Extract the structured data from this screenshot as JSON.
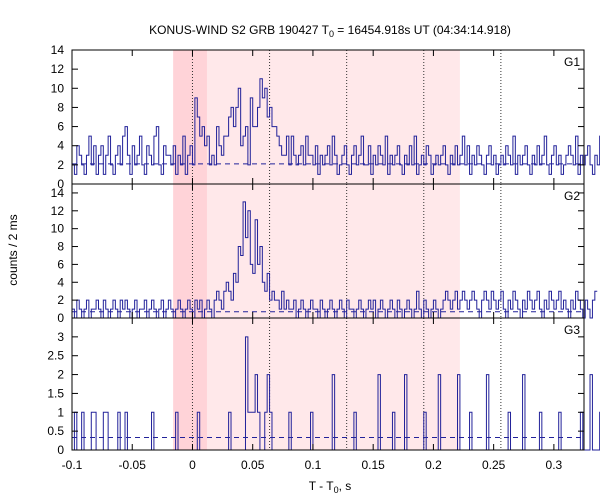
{
  "chart_data": {
    "type": "line",
    "title": {
      "prefix": "KONUS-WIND S2 GRB 190427 T",
      "sub": "0",
      "suffix": " = 16454.918s UT (04:34:14.918)"
    },
    "xlabel": {
      "prefix": "T - T",
      "sub": "0",
      "suffix": ", s"
    },
    "ylabel": "counts / 2 ms",
    "xlim": [
      -0.1,
      0.325
    ],
    "x_ticks": [
      "-0.1",
      "-0.05",
      "0",
      "0.05",
      "0.1",
      "0.15",
      "0.2",
      "0.25",
      "0.3"
    ],
    "x_tick_values": [
      -0.1,
      -0.05,
      0,
      0.05,
      0.1,
      0.15,
      0.2,
      0.25,
      0.3
    ],
    "bin_width": 0.002,
    "colors": {
      "light_region": "#ffe8ea",
      "dark_region": "#ffd3d8",
      "series": "#22229a",
      "dotted_lines": "#333333"
    },
    "shaded_regions": [
      {
        "x": [
          -0.016,
          0.222
        ],
        "shade": "light"
      },
      {
        "x": [
          -0.016,
          0.012
        ],
        "shade": "dark"
      }
    ],
    "dotted_vlines": [
      0,
      0.064,
      0.128,
      0.192,
      0.256
    ],
    "panels": [
      {
        "name": "G1",
        "ylim": [
          0,
          14
        ],
        "yticks": [
          "0",
          "2",
          "4",
          "6",
          "8",
          "10",
          "12",
          "14"
        ],
        "ytick_values": [
          0,
          2,
          4,
          6,
          8,
          10,
          12,
          14
        ],
        "background": 2.1,
        "values": [
          2,
          1,
          4,
          3,
          2,
          1,
          3,
          5,
          2,
          4,
          1,
          3,
          4,
          1,
          3,
          5,
          2,
          1,
          3,
          4,
          2,
          5,
          6,
          3,
          1,
          4,
          2,
          3,
          5,
          2,
          1,
          4,
          3,
          2,
          5,
          6,
          2,
          1,
          4,
          3,
          3,
          2,
          4,
          1,
          3,
          2,
          5,
          1,
          3,
          4,
          2,
          9,
          7,
          5,
          6,
          4,
          5,
          2,
          3,
          2,
          6,
          4,
          3,
          5,
          5,
          7,
          8,
          6,
          8,
          10,
          4,
          5,
          6,
          2,
          9,
          6,
          6,
          8,
          11,
          9,
          10,
          7,
          8,
          6,
          6,
          5,
          4,
          3,
          3,
          5,
          2,
          5,
          3,
          2,
          3,
          4,
          2,
          5,
          3,
          3,
          2,
          4,
          1,
          3,
          2,
          3,
          4,
          2,
          5,
          3,
          1,
          2,
          3,
          4,
          2,
          1,
          3,
          4,
          2,
          3,
          5,
          2,
          2,
          4,
          1,
          3,
          2,
          4,
          3,
          2,
          5,
          1,
          3,
          2,
          3,
          4,
          2,
          1,
          3,
          2,
          4,
          2,
          5,
          1,
          2,
          3,
          2,
          4,
          3,
          1,
          2,
          3,
          2,
          3,
          4,
          2,
          1,
          3,
          2,
          4,
          2,
          3,
          5,
          2,
          4,
          1,
          3,
          2,
          4,
          3,
          2,
          1,
          3,
          4,
          2,
          3,
          1,
          2,
          3,
          2,
          4,
          3,
          2,
          5,
          1,
          3,
          2,
          3,
          4,
          2,
          1,
          3,
          2,
          4,
          2,
          3,
          5,
          2,
          1,
          3,
          4,
          2,
          3,
          1,
          2,
          3,
          4,
          3,
          2,
          5,
          1,
          3,
          2,
          3,
          4,
          2,
          1,
          3,
          2,
          5
        ]
      },
      {
        "name": "G2",
        "ylim": [
          0,
          15
        ],
        "yticks": [
          "0",
          "2",
          "4",
          "6",
          "8",
          "10",
          "12",
          "14"
        ],
        "ytick_values": [
          0,
          2,
          4,
          6,
          8,
          10,
          12,
          14
        ],
        "background": 0.7,
        "values": [
          1,
          0,
          2,
          1,
          0,
          1,
          2,
          0,
          1,
          1,
          2,
          1,
          0,
          2,
          1,
          0,
          1,
          2,
          1,
          0,
          2,
          1,
          2,
          1,
          0,
          1,
          2,
          0,
          1,
          1,
          2,
          0,
          1,
          2,
          1,
          0,
          1,
          2,
          0,
          1,
          2,
          1,
          0,
          1,
          2,
          1,
          0,
          1,
          2,
          1,
          0,
          2,
          1,
          2,
          0,
          1,
          2,
          1,
          0,
          2,
          3,
          2,
          1,
          3,
          4,
          3,
          2,
          5,
          4,
          8,
          7,
          13,
          9,
          12,
          6,
          5,
          11,
          6,
          8,
          4,
          3,
          5,
          2,
          3,
          2,
          2,
          1,
          3,
          1,
          2,
          1,
          1,
          2,
          0,
          1,
          2,
          1,
          0,
          1,
          2,
          1,
          1,
          0,
          2,
          1,
          0,
          1,
          2,
          1,
          0,
          1,
          2,
          1,
          0,
          2,
          1,
          1,
          0,
          1,
          2,
          1,
          0,
          1,
          2,
          1,
          2,
          0,
          1,
          2,
          1,
          0,
          1,
          2,
          1,
          0,
          2,
          1,
          0,
          1,
          2,
          1,
          0,
          1,
          3,
          1,
          0,
          2,
          1,
          0,
          1,
          2,
          1,
          0,
          1,
          2,
          3,
          2,
          1,
          2,
          3,
          1,
          2,
          3,
          2,
          1,
          2,
          3,
          2,
          1,
          0,
          2,
          3,
          2,
          1,
          3,
          2,
          1,
          2,
          3,
          1,
          0,
          2,
          1,
          3,
          2,
          1,
          0,
          2,
          1,
          3,
          2,
          1,
          2,
          3,
          1,
          0,
          2,
          1,
          3,
          2,
          1,
          2,
          3,
          1,
          2,
          1,
          0,
          2,
          1,
          3,
          2,
          1,
          0,
          2,
          1,
          0,
          2,
          3
        ]
      },
      {
        "name": "G3",
        "ylim": [
          0,
          3.5
        ],
        "yticks": [
          "0",
          "0.5",
          "1",
          "1.5",
          "2",
          "2.5",
          "3"
        ],
        "ytick_values": [
          0,
          0.5,
          1,
          1.5,
          2,
          2.5,
          3
        ],
        "background": 0.33,
        "values": [
          0,
          1,
          0,
          0,
          1,
          0,
          0,
          0,
          1,
          1,
          0,
          0,
          0,
          1,
          1,
          0,
          0,
          0,
          0,
          1,
          0,
          0,
          1,
          0,
          0,
          0,
          0,
          0,
          0,
          0,
          0,
          0,
          0,
          1,
          0,
          0,
          0,
          0,
          0,
          0,
          0,
          0,
          0,
          1,
          0,
          0,
          0,
          0,
          0,
          0,
          0,
          0,
          1,
          0,
          0,
          0,
          0,
          0,
          0,
          0,
          0,
          0,
          0,
          0,
          0,
          1,
          0,
          0,
          0,
          0,
          0,
          0,
          3,
          1,
          1,
          1,
          2,
          1,
          0,
          0,
          1,
          2,
          1,
          0,
          0,
          0,
          0,
          0,
          0,
          0,
          1,
          0,
          0,
          0,
          0,
          0,
          0,
          0,
          0,
          1,
          0,
          0,
          0,
          0,
          0,
          0,
          0,
          0,
          2,
          0,
          0,
          0,
          0,
          0,
          0,
          0,
          0,
          1,
          0,
          0,
          0,
          0,
          0,
          0,
          0,
          0,
          0,
          2,
          0,
          0,
          0,
          0,
          0,
          1,
          0,
          0,
          0,
          0,
          2,
          0,
          0,
          0,
          0,
          0,
          0,
          0,
          1,
          0,
          0,
          0,
          0,
          0,
          2,
          0,
          0,
          0,
          0,
          0,
          0,
          0,
          2,
          0,
          0,
          0,
          0,
          1,
          0,
          0,
          0,
          0,
          0,
          0,
          2,
          0,
          0,
          0,
          0,
          0,
          0,
          0,
          0,
          1,
          0,
          0,
          0,
          0,
          0,
          2,
          0,
          0,
          0,
          0,
          0,
          0,
          1,
          0,
          0,
          0,
          0,
          0,
          0,
          0,
          1,
          0,
          0,
          0,
          0,
          0,
          0,
          0,
          0,
          1,
          0,
          0,
          0,
          2,
          0,
          0,
          0,
          1,
          0,
          0,
          0
        ]
      }
    ]
  }
}
